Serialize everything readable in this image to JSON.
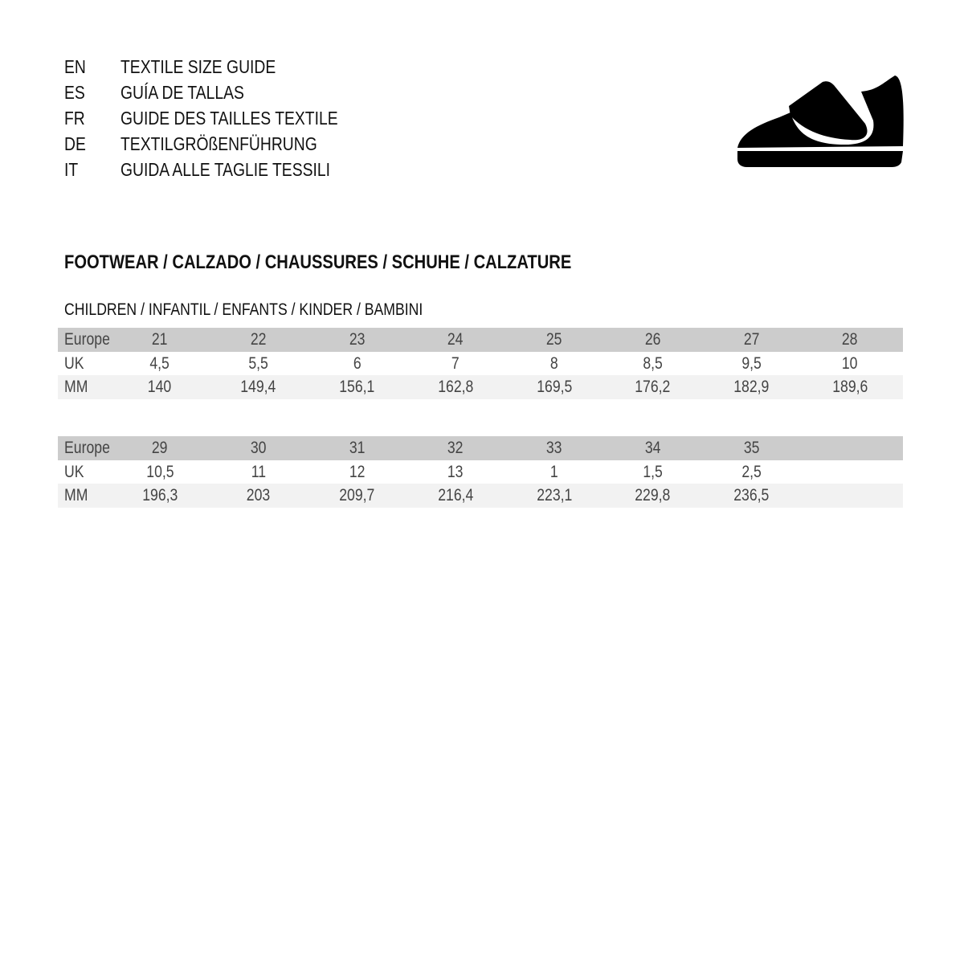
{
  "guide_titles": [
    {
      "code": "EN",
      "title": "TEXTILE SIZE GUIDE"
    },
    {
      "code": "ES",
      "title": "GUÍA DE TALLAS"
    },
    {
      "code": "FR",
      "title": "GUIDE DES TAILLES TEXTILE"
    },
    {
      "code": "DE",
      "title": "TEXTILGRÖßENFÜHRUNG"
    },
    {
      "code": "IT",
      "title": "GUIDA ALLE TAGLIE TESSILI"
    }
  ],
  "icon": "shoe-velcro-icon",
  "section_title": "FOOTWEAR / CALZADO / CHAUSSURES / SCHUHE / CALZATURE",
  "subsection_title": "CHILDREN / INFANTIL / ENFANTS / KINDER / BAMBINI",
  "tables": [
    {
      "rows": [
        {
          "label": "Europe",
          "values": [
            "21",
            "22",
            "23",
            "24",
            "25",
            "26",
            "27",
            "28"
          ]
        },
        {
          "label": "UK",
          "values": [
            "4,5",
            "5,5",
            "6",
            "7",
            "8",
            "8,5",
            "9,5",
            "10"
          ]
        },
        {
          "label": "MM",
          "values": [
            "140",
            "149,4",
            "156,1",
            "162,8",
            "169,5",
            "176,2",
            "182,9",
            "189,6"
          ]
        }
      ]
    },
    {
      "rows": [
        {
          "label": "Europe",
          "values": [
            "29",
            "30",
            "31",
            "32",
            "33",
            "34",
            "35"
          ]
        },
        {
          "label": "UK",
          "values": [
            "10,5",
            "11",
            "12",
            "13",
            "1",
            "1,5",
            "2,5"
          ]
        },
        {
          "label": "MM",
          "values": [
            "196,3",
            "203",
            "209,7",
            "216,4",
            "223,1",
            "229,8",
            "236,5"
          ]
        }
      ]
    }
  ],
  "colors": {
    "header_row": "#cccccc",
    "alt_row": "#f2f2f2",
    "text": "#444444"
  }
}
